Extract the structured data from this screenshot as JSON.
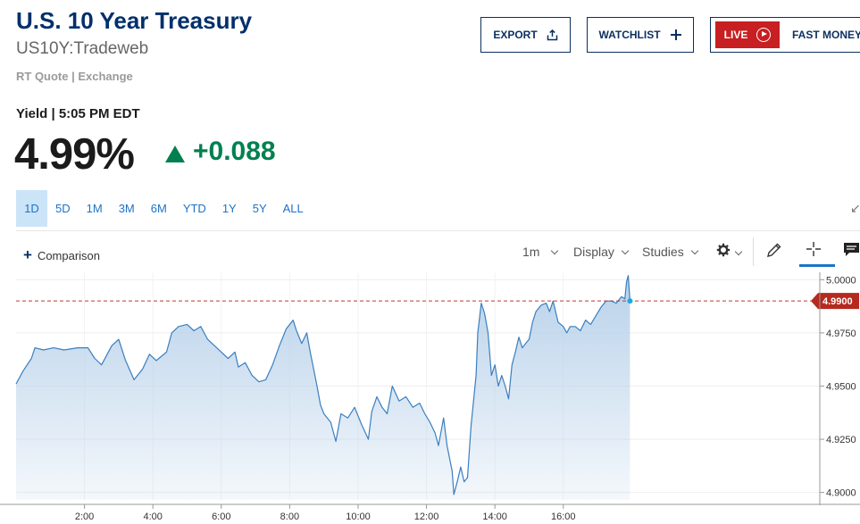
{
  "header": {
    "title": "U.S. 10 Year Treasury",
    "symbol": "US10Y:Tradeweb",
    "quote_source": "RT Quote | Exchange"
  },
  "actions": {
    "export_label": "EXPORT",
    "watchlist_label": "WATCHLIST",
    "live_label": "LIVE",
    "fast_money_label": "FAST MONEY"
  },
  "quote": {
    "yield_label": "Yield | 5:05 PM EDT",
    "price": "4.99%",
    "change": "+0.088",
    "direction": "up",
    "up_color": "#00804f"
  },
  "ranges": [
    "1D",
    "5D",
    "1M",
    "3M",
    "6M",
    "YTD",
    "1Y",
    "5Y",
    "ALL"
  ],
  "active_range": "1D",
  "toolbar": {
    "comparison_label": "Comparison",
    "interval_label": "1m",
    "display_label": "Display",
    "studies_label": "Studies",
    "icons": [
      "gear-icon",
      "pencil-icon",
      "crosshair-icon",
      "comment-icon"
    ]
  },
  "chart_data": {
    "type": "area",
    "x_unit": "hours",
    "x_ticks": [
      2,
      4,
      6,
      8,
      10,
      12,
      14,
      16
    ],
    "x_tick_labels": [
      "2:00",
      "4:00",
      "6:00",
      "8:00",
      "10:00",
      "12:00",
      "14:00",
      "16:00"
    ],
    "xlim": [
      0,
      23.5
    ],
    "ylim": [
      4.8965,
      5.0035
    ],
    "y_ticks": [
      4.9,
      4.925,
      4.95,
      4.975,
      5.0
    ],
    "y_tick_labels": [
      "4.9000",
      "4.9250",
      "4.9500",
      "4.9750",
      "5.0000"
    ],
    "last_value": 4.99,
    "last_value_label": "4.9900",
    "line_color": "#3a7fbf",
    "fill_color": "#c9dcef",
    "reference_line_color": "#c0392b",
    "marker_color": "#1fa8e0",
    "grid": true,
    "points": [
      [
        0.0,
        4.951
      ],
      [
        0.2,
        4.957
      ],
      [
        0.45,
        4.963
      ],
      [
        0.55,
        4.968
      ],
      [
        0.8,
        4.967
      ],
      [
        1.1,
        4.968
      ],
      [
        1.4,
        4.967
      ],
      [
        1.8,
        4.968
      ],
      [
        2.1,
        4.968
      ],
      [
        2.3,
        4.963
      ],
      [
        2.5,
        4.96
      ],
      [
        2.8,
        4.969
      ],
      [
        3.0,
        4.972
      ],
      [
        3.2,
        4.962
      ],
      [
        3.45,
        4.953
      ],
      [
        3.7,
        4.958
      ],
      [
        3.9,
        4.965
      ],
      [
        4.1,
        4.962
      ],
      [
        4.4,
        4.966
      ],
      [
        4.55,
        4.975
      ],
      [
        4.75,
        4.978
      ],
      [
        5.0,
        4.979
      ],
      [
        5.2,
        4.976
      ],
      [
        5.4,
        4.978
      ],
      [
        5.6,
        4.972
      ],
      [
        5.8,
        4.969
      ],
      [
        6.0,
        4.966
      ],
      [
        6.2,
        4.963
      ],
      [
        6.4,
        4.966
      ],
      [
        6.5,
        4.959
      ],
      [
        6.7,
        4.961
      ],
      [
        6.9,
        4.955
      ],
      [
        7.1,
        4.952
      ],
      [
        7.3,
        4.953
      ],
      [
        7.5,
        4.96
      ],
      [
        7.7,
        4.969
      ],
      [
        7.9,
        4.977
      ],
      [
        8.1,
        4.981
      ],
      [
        8.2,
        4.976
      ],
      [
        8.35,
        4.97
      ],
      [
        8.5,
        4.975
      ],
      [
        8.6,
        4.966
      ],
      [
        8.8,
        4.95
      ],
      [
        8.9,
        4.941
      ],
      [
        9.0,
        4.937
      ],
      [
        9.2,
        4.933
      ],
      [
        9.35,
        4.924
      ],
      [
        9.5,
        4.937
      ],
      [
        9.7,
        4.935
      ],
      [
        9.9,
        4.94
      ],
      [
        10.1,
        4.932
      ],
      [
        10.3,
        4.925
      ],
      [
        10.4,
        4.938
      ],
      [
        10.55,
        4.945
      ],
      [
        10.7,
        4.94
      ],
      [
        10.85,
        4.937
      ],
      [
        11.0,
        4.95
      ],
      [
        11.2,
        4.943
      ],
      [
        11.4,
        4.945
      ],
      [
        11.6,
        4.94
      ],
      [
        11.8,
        4.942
      ],
      [
        11.95,
        4.937
      ],
      [
        12.1,
        4.933
      ],
      [
        12.25,
        4.928
      ],
      [
        12.35,
        4.922
      ],
      [
        12.5,
        4.935
      ],
      [
        12.6,
        4.922
      ],
      [
        12.75,
        4.91
      ],
      [
        12.8,
        4.899
      ],
      [
        12.9,
        4.905
      ],
      [
        13.0,
        4.912
      ],
      [
        13.1,
        4.905
      ],
      [
        13.2,
        4.907
      ],
      [
        13.3,
        4.931
      ],
      [
        13.4,
        4.947
      ],
      [
        13.45,
        4.955
      ],
      [
        13.5,
        4.975
      ],
      [
        13.6,
        4.989
      ],
      [
        13.7,
        4.984
      ],
      [
        13.8,
        4.975
      ],
      [
        13.9,
        4.955
      ],
      [
        14.0,
        4.96
      ],
      [
        14.1,
        4.95
      ],
      [
        14.2,
        4.955
      ],
      [
        14.3,
        4.95
      ],
      [
        14.4,
        4.944
      ],
      [
        14.5,
        4.96
      ],
      [
        14.6,
        4.966
      ],
      [
        14.7,
        4.973
      ],
      [
        14.8,
        4.968
      ],
      [
        14.9,
        4.97
      ],
      [
        15.0,
        4.972
      ],
      [
        15.1,
        4.98
      ],
      [
        15.2,
        4.985
      ],
      [
        15.35,
        4.988
      ],
      [
        15.5,
        4.989
      ],
      [
        15.6,
        4.985
      ],
      [
        15.7,
        4.99
      ],
      [
        15.85,
        4.98
      ],
      [
        16.0,
        4.978
      ],
      [
        16.1,
        4.975
      ],
      [
        16.2,
        4.978
      ],
      [
        16.35,
        4.978
      ],
      [
        16.5,
        4.976
      ],
      [
        16.65,
        4.981
      ],
      [
        16.8,
        4.979
      ],
      [
        16.95,
        4.983
      ],
      [
        17.1,
        4.987
      ],
      [
        17.25,
        4.99
      ],
      [
        17.4,
        4.99
      ],
      [
        17.55,
        4.989
      ],
      [
        17.7,
        4.992
      ],
      [
        17.8,
        4.991
      ],
      [
        17.85,
        4.999
      ],
      [
        17.9,
        5.002
      ],
      [
        17.95,
        4.99
      ]
    ]
  }
}
